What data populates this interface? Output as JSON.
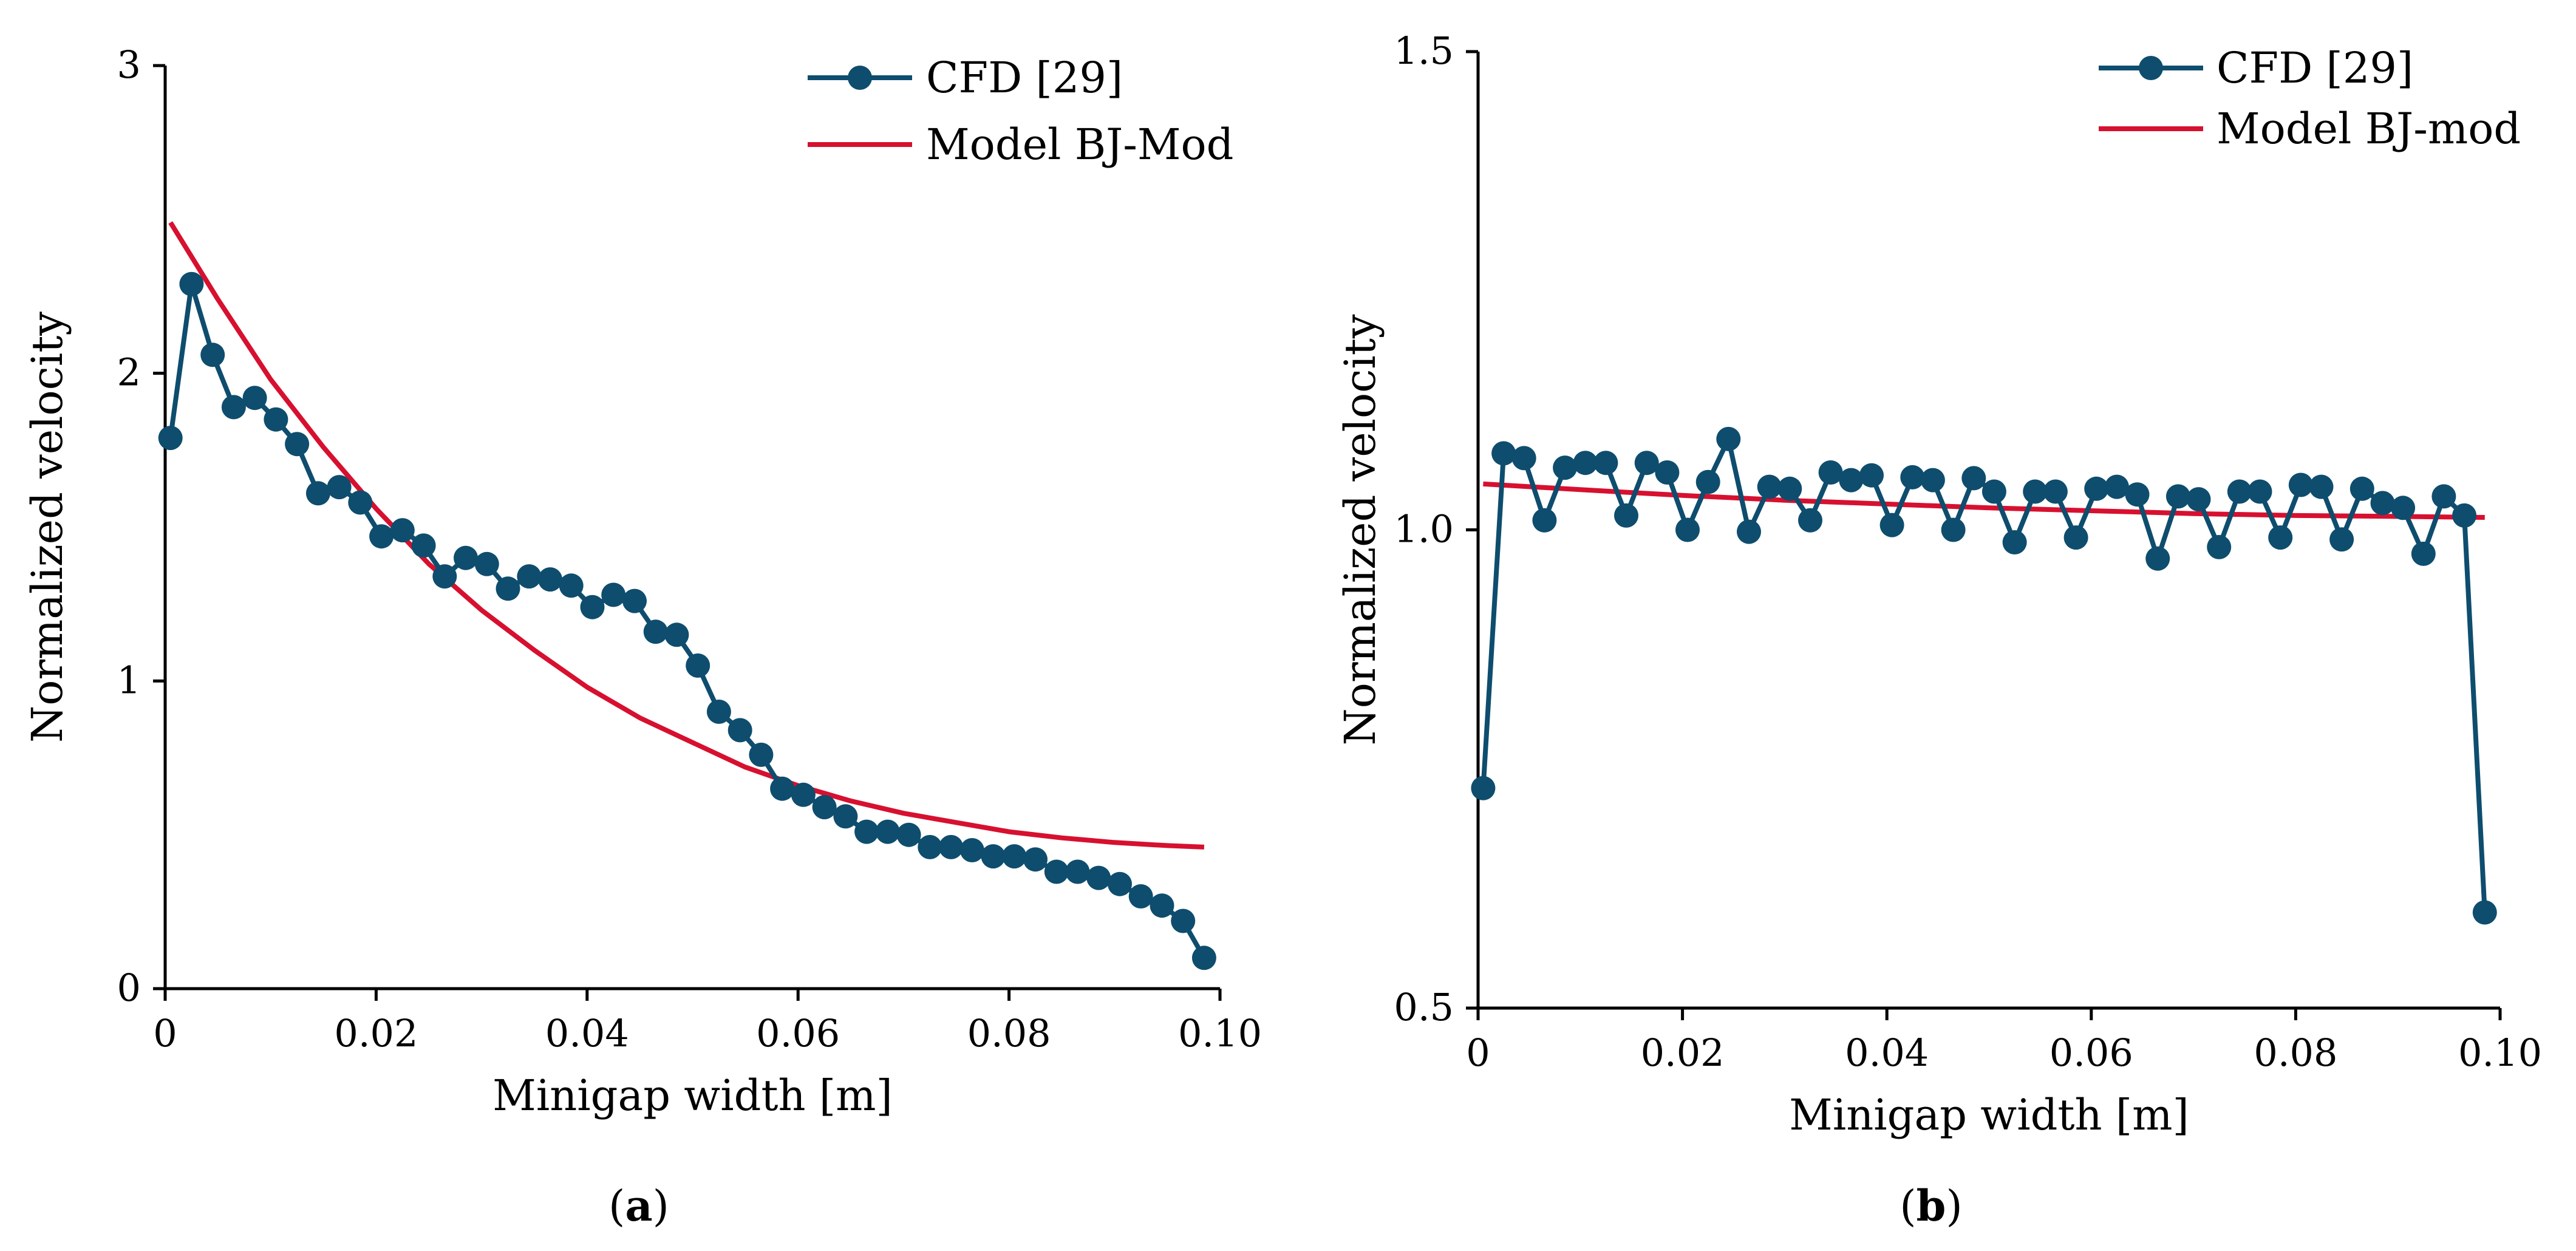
{
  "colors": {
    "cfd": "#0e4d6e",
    "model": "#d7102f",
    "axis": "#000000"
  },
  "chart_data": [
    {
      "id": "a",
      "type": "line",
      "caption_letter": "a",
      "xlabel": "Minigap width [m]",
      "ylabel": "Normalized velocity",
      "xlim": [
        0,
        0.1
      ],
      "ylim": [
        0,
        3
      ],
      "xticks": [
        0,
        0.02,
        0.04,
        0.06,
        0.08,
        0.1
      ],
      "xtick_labels": [
        "0",
        "0.02",
        "0.04",
        "0.06",
        "0.08",
        "0.10"
      ],
      "yticks": [
        0,
        1,
        2,
        3
      ],
      "ytick_labels": [
        "0",
        "1",
        "2",
        "3"
      ],
      "legend": {
        "placement": "top-right",
        "entries": [
          "CFD [29]",
          "Model BJ-Mod"
        ]
      },
      "series": [
        {
          "name": "CFD [29]",
          "style": "line-markers",
          "x": [
            0.0005,
            0.0025,
            0.0045,
            0.0065,
            0.0085,
            0.0105,
            0.0125,
            0.0145,
            0.0165,
            0.0185,
            0.0205,
            0.0225,
            0.0245,
            0.0265,
            0.0285,
            0.0305,
            0.0325,
            0.0345,
            0.0365,
            0.0385,
            0.0405,
            0.0425,
            0.0445,
            0.0465,
            0.0485,
            0.0505,
            0.0525,
            0.0545,
            0.0565,
            0.0585,
            0.0605,
            0.0625,
            0.0645,
            0.0665,
            0.0685,
            0.0705,
            0.0725,
            0.0745,
            0.0765,
            0.0785,
            0.0805,
            0.0825,
            0.0845,
            0.0865,
            0.0885,
            0.0905,
            0.0925,
            0.0945,
            0.0965,
            0.0985
          ],
          "y": [
            1.79,
            2.29,
            2.06,
            1.89,
            1.92,
            1.85,
            1.77,
            1.61,
            1.63,
            1.58,
            1.47,
            1.49,
            1.44,
            1.34,
            1.4,
            1.38,
            1.3,
            1.34,
            1.33,
            1.31,
            1.24,
            1.28,
            1.26,
            1.16,
            1.15,
            1.05,
            0.9,
            0.84,
            0.76,
            0.65,
            0.63,
            0.59,
            0.56,
            0.51,
            0.51,
            0.5,
            0.46,
            0.46,
            0.45,
            0.43,
            0.43,
            0.42,
            0.38,
            0.38,
            0.36,
            0.34,
            0.3,
            0.27,
            0.22,
            0.1
          ]
        },
        {
          "name": "Model BJ-Mod",
          "style": "line",
          "x": [
            0.0005,
            0.005,
            0.01,
            0.015,
            0.02,
            0.025,
            0.03,
            0.035,
            0.04,
            0.045,
            0.05,
            0.055,
            0.06,
            0.065,
            0.07,
            0.075,
            0.08,
            0.085,
            0.09,
            0.095,
            0.0985
          ],
          "y": [
            2.49,
            2.24,
            1.98,
            1.76,
            1.56,
            1.38,
            1.23,
            1.1,
            0.98,
            0.88,
            0.8,
            0.72,
            0.66,
            0.61,
            0.57,
            0.54,
            0.51,
            0.49,
            0.475,
            0.465,
            0.46
          ]
        }
      ]
    },
    {
      "id": "b",
      "type": "line",
      "caption_letter": "b",
      "xlabel": "Minigap width [m]",
      "ylabel": "Normalized velocity",
      "xlim": [
        0,
        0.1
      ],
      "ylim": [
        0.5,
        1.5
      ],
      "xticks": [
        0,
        0.02,
        0.04,
        0.06,
        0.08,
        0.1
      ],
      "xtick_labels": [
        "0",
        "0.02",
        "0.04",
        "0.06",
        "0.08",
        "0.10"
      ],
      "yticks": [
        0.5,
        1.0,
        1.5
      ],
      "ytick_labels": [
        "0.5",
        "1.0",
        "1.5"
      ],
      "legend": {
        "placement": "top-right",
        "entries": [
          "CFD [29]",
          "Model BJ-mod"
        ]
      },
      "series": [
        {
          "name": "CFD [29]",
          "style": "line-markers",
          "x": [
            0.0005,
            0.0025,
            0.0045,
            0.0065,
            0.0085,
            0.0105,
            0.0125,
            0.0145,
            0.0165,
            0.0185,
            0.0205,
            0.0225,
            0.0245,
            0.0265,
            0.0285,
            0.0305,
            0.0325,
            0.0345,
            0.0365,
            0.0385,
            0.0405,
            0.0425,
            0.0445,
            0.0465,
            0.0485,
            0.0505,
            0.0525,
            0.0545,
            0.0565,
            0.0585,
            0.0605,
            0.0625,
            0.0645,
            0.0665,
            0.0685,
            0.0705,
            0.0725,
            0.0745,
            0.0765,
            0.0785,
            0.0805,
            0.0825,
            0.0845,
            0.0865,
            0.0885,
            0.0905,
            0.0925,
            0.0945,
            0.0965,
            0.0985
          ],
          "y": [
            0.73,
            1.08,
            1.075,
            1.01,
            1.065,
            1.07,
            1.07,
            1.015,
            1.07,
            1.06,
            1.0,
            1.05,
            1.095,
            0.998,
            1.045,
            1.043,
            1.01,
            1.06,
            1.052,
            1.057,
            1.005,
            1.055,
            1.052,
            1.0,
            1.054,
            1.04,
            0.987,
            1.04,
            1.04,
            0.992,
            1.043,
            1.045,
            1.037,
            0.97,
            1.035,
            1.032,
            0.982,
            1.04,
            1.04,
            0.992,
            1.047,
            1.045,
            0.99,
            1.043,
            1.028,
            1.023,
            0.975,
            1.035,
            1.015,
            0.6
          ]
        },
        {
          "name": "Model BJ-mod",
          "style": "line",
          "x": [
            0.0005,
            0.01,
            0.02,
            0.03,
            0.04,
            0.05,
            0.06,
            0.07,
            0.08,
            0.09,
            0.0985
          ],
          "y": [
            1.048,
            1.042,
            1.036,
            1.031,
            1.027,
            1.023,
            1.02,
            1.017,
            1.015,
            1.014,
            1.013
          ]
        }
      ]
    }
  ]
}
